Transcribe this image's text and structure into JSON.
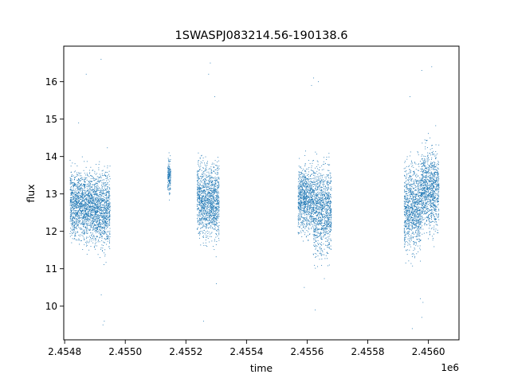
{
  "chart_data": {
    "type": "scatter",
    "title": "1SWASPJ083214.56-190138.6",
    "xlabel": "time",
    "ylabel": "flux",
    "x_offset_label": "1e6",
    "xlim": [
      2454797,
      2456101
    ],
    "ylim": [
      9.1,
      16.95
    ],
    "grid": false,
    "x_ticks": [
      {
        "value": 2454800,
        "label": "2.4548"
      },
      {
        "value": 2455000,
        "label": "2.4550"
      },
      {
        "value": 2455200,
        "label": "2.4552"
      },
      {
        "value": 2455400,
        "label": "2.4554"
      },
      {
        "value": 2455600,
        "label": "2.4556"
      },
      {
        "value": 2455800,
        "label": "2.4558"
      },
      {
        "value": 2456000,
        "label": "2.4560"
      }
    ],
    "y_ticks": [
      {
        "value": 10,
        "label": "10"
      },
      {
        "value": 11,
        "label": "11"
      },
      {
        "value": 12,
        "label": "12"
      },
      {
        "value": 13,
        "label": "13"
      },
      {
        "value": 14,
        "label": "14"
      },
      {
        "value": 15,
        "label": "15"
      },
      {
        "value": 16,
        "label": "16"
      }
    ],
    "marker_color": "#1f77b4",
    "series": [
      {
        "segments": [
          {
            "x_start": 2454818,
            "x_end": 2454900,
            "y_low": 11.1,
            "y_high": 14.3,
            "extremes_y": [
              16.2,
              14.9
            ]
          },
          {
            "x_start": 2454900,
            "x_end": 2454950,
            "y_low": 10.8,
            "y_high": 14.4,
            "extremes_y": [
              16.6,
              9.6,
              10.3,
              9.5
            ]
          },
          {
            "x_start": 2455140,
            "x_end": 2455150,
            "y_low": 12.6,
            "y_high": 14.3,
            "extremes_y": [
              14.1
            ]
          },
          {
            "x_start": 2455237,
            "x_end": 2455285,
            "y_low": 11.1,
            "y_high": 14.6,
            "extremes_y": [
              16.5,
              9.6,
              16.2
            ]
          },
          {
            "x_start": 2455285,
            "x_end": 2455310,
            "y_low": 11.0,
            "y_high": 14.7,
            "extremes_y": [
              15.6,
              10.6
            ]
          },
          {
            "x_start": 2455570,
            "x_end": 2455620,
            "y_low": 11.3,
            "y_high": 14.4,
            "extremes_y": [
              15.9,
              10.5
            ]
          },
          {
            "x_start": 2455620,
            "x_end": 2455680,
            "y_low": 10.4,
            "y_high": 14.8,
            "extremes_y": [
              16.0,
              9.9,
              16.1
            ]
          },
          {
            "x_start": 2455920,
            "x_end": 2455975,
            "y_low": 10.6,
            "y_high": 14.7,
            "extremes_y": [
              15.6,
              9.4,
              10.2
            ]
          },
          {
            "x_start": 2455975,
            "x_end": 2456035,
            "y_low": 11.2,
            "y_high": 15.0,
            "extremes_y": [
              16.4,
              9.7,
              16.3,
              10.1
            ]
          }
        ]
      }
    ]
  }
}
